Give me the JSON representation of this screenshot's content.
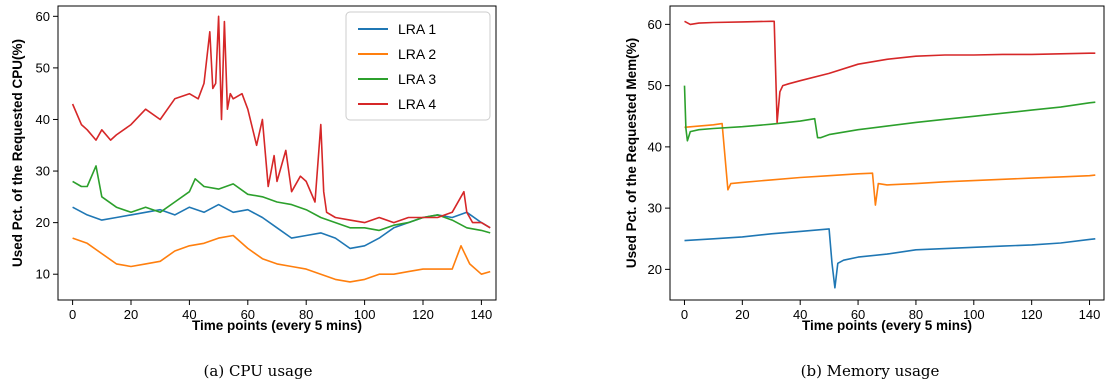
{
  "chart_data": [
    {
      "type": "line",
      "caption": "(a)  CPU usage",
      "xlabel": "Time points (every 5 mins)",
      "ylabel": "Used Pct. of the Requested CPU(%)",
      "xlim": [
        -5,
        145
      ],
      "ylim": [
        5,
        62
      ],
      "xticks": [
        0,
        20,
        40,
        60,
        80,
        100,
        120,
        140
      ],
      "yticks": [
        10,
        20,
        30,
        40,
        50,
        60
      ],
      "grid": false,
      "legend": "top-right",
      "series": [
        {
          "name": "LRA 1",
          "color": "#1f77b4",
          "x": [
            0,
            5,
            10,
            15,
            20,
            25,
            30,
            35,
            40,
            45,
            50,
            55,
            60,
            65,
            70,
            75,
            80,
            85,
            90,
            95,
            100,
            105,
            110,
            115,
            120,
            125,
            130,
            135,
            140,
            143
          ],
          "y": [
            23,
            21.5,
            20.5,
            21,
            21.5,
            22,
            22.5,
            21.5,
            23,
            22,
            23.5,
            22,
            22.5,
            21,
            19,
            17,
            17.5,
            18,
            17,
            15,
            15.5,
            17,
            19,
            20,
            21,
            21.5,
            21,
            22,
            20,
            19
          ]
        },
        {
          "name": "LRA 2",
          "color": "#ff7f0e",
          "x": [
            0,
            5,
            10,
            15,
            20,
            25,
            30,
            35,
            40,
            45,
            50,
            55,
            60,
            65,
            70,
            75,
            80,
            85,
            90,
            95,
            100,
            105,
            110,
            115,
            120,
            125,
            130,
            133,
            136,
            140,
            143
          ],
          "y": [
            17,
            16,
            14,
            12,
            11.5,
            12,
            12.5,
            14.5,
            15.5,
            16,
            17,
            17.5,
            15,
            13,
            12,
            11.5,
            11,
            10,
            9,
            8.5,
            9,
            10,
            10,
            10.5,
            11,
            11,
            11,
            15.5,
            12,
            10,
            10.5
          ]
        },
        {
          "name": "LRA 3",
          "color": "#2ca02c",
          "x": [
            0,
            3,
            5,
            8,
            10,
            15,
            20,
            25,
            30,
            35,
            40,
            42,
            45,
            50,
            55,
            60,
            65,
            70,
            75,
            80,
            85,
            90,
            95,
            100,
            105,
            110,
            115,
            120,
            125,
            130,
            135,
            140,
            143
          ],
          "y": [
            28,
            27,
            27,
            31,
            25,
            23,
            22,
            23,
            22,
            24,
            26,
            28.5,
            27,
            26.5,
            27.5,
            25.5,
            25,
            24,
            23.5,
            22.5,
            21,
            20,
            19,
            19,
            18.5,
            19.5,
            20,
            21,
            21.5,
            20.5,
            19,
            18.5,
            18
          ]
        },
        {
          "name": "LRA 4",
          "color": "#d62728",
          "x": [
            0,
            3,
            5,
            8,
            10,
            13,
            15,
            20,
            25,
            30,
            35,
            40,
            43,
            45,
            47,
            48,
            49,
            50,
            51,
            52,
            53,
            54,
            55,
            58,
            60,
            63,
            65,
            67,
            69,
            70,
            73,
            75,
            78,
            80,
            83,
            85,
            86,
            87,
            90,
            95,
            100,
            105,
            110,
            115,
            120,
            125,
            130,
            134,
            135,
            137,
            140,
            143
          ],
          "y": [
            43,
            39,
            38,
            36,
            38,
            36,
            37,
            39,
            42,
            40,
            44,
            45,
            44,
            47,
            57,
            46,
            47,
            60,
            40,
            59,
            42,
            45,
            44,
            45,
            42,
            35,
            40,
            27,
            33,
            28,
            34,
            26,
            29,
            28,
            24,
            39,
            26,
            22,
            21,
            20.5,
            20,
            21,
            20,
            21,
            21,
            21,
            22,
            26,
            22,
            20,
            20,
            19
          ]
        }
      ]
    },
    {
      "type": "line",
      "caption": "(b)  Memory usage",
      "xlabel": "Time points (every 5 mins)",
      "ylabel": "Used Pct. of the Requested Mem(%)",
      "xlim": [
        -5,
        145
      ],
      "ylim": [
        15,
        63
      ],
      "xticks": [
        0,
        20,
        40,
        60,
        80,
        100,
        120,
        140
      ],
      "yticks": [
        20,
        30,
        40,
        50,
        60
      ],
      "grid": false,
      "legend": "none",
      "series": [
        {
          "name": "LRA 1",
          "color": "#1f77b4",
          "x": [
            0,
            10,
            20,
            30,
            40,
            50,
            51,
            52,
            53,
            55,
            60,
            70,
            80,
            90,
            100,
            110,
            120,
            130,
            140,
            142
          ],
          "y": [
            24.7,
            25,
            25.3,
            25.8,
            26.2,
            26.6,
            21,
            17,
            21,
            21.5,
            22,
            22.5,
            23.2,
            23.4,
            23.6,
            23.8,
            24,
            24.3,
            24.9,
            25
          ]
        },
        {
          "name": "LRA 2",
          "color": "#ff7f0e",
          "x": [
            0,
            5,
            10,
            13,
            15,
            16,
            20,
            30,
            40,
            50,
            60,
            65,
            66,
            67,
            70,
            80,
            90,
            100,
            110,
            120,
            130,
            140,
            142
          ],
          "y": [
            43.2,
            43.4,
            43.6,
            43.8,
            33,
            34,
            34.2,
            34.6,
            35,
            35.3,
            35.6,
            35.7,
            30.5,
            34,
            33.8,
            34,
            34.3,
            34.5,
            34.7,
            34.9,
            35.1,
            35.3,
            35.4
          ]
        },
        {
          "name": "LRA 3",
          "color": "#2ca02c",
          "x": [
            0,
            0.5,
            1,
            2,
            5,
            10,
            20,
            30,
            40,
            45,
            46,
            47,
            50,
            60,
            70,
            80,
            90,
            100,
            110,
            120,
            130,
            140,
            142
          ],
          "y": [
            50,
            43,
            41,
            42.5,
            42.8,
            43,
            43.3,
            43.7,
            44.2,
            44.6,
            41.5,
            41.5,
            42,
            42.8,
            43.4,
            44,
            44.5,
            45,
            45.5,
            46,
            46.5,
            47.2,
            47.3
          ]
        },
        {
          "name": "LRA 4",
          "color": "#d62728",
          "x": [
            0,
            2,
            5,
            10,
            20,
            30,
            31,
            32,
            33,
            34,
            36,
            40,
            50,
            60,
            70,
            80,
            90,
            100,
            110,
            120,
            130,
            140,
            142
          ],
          "y": [
            60.5,
            60,
            60.2,
            60.3,
            60.4,
            60.5,
            60.5,
            44,
            49,
            50,
            50.3,
            50.8,
            52,
            53.5,
            54.3,
            54.8,
            55,
            55,
            55.1,
            55.1,
            55.2,
            55.3,
            55.3
          ]
        }
      ]
    }
  ]
}
